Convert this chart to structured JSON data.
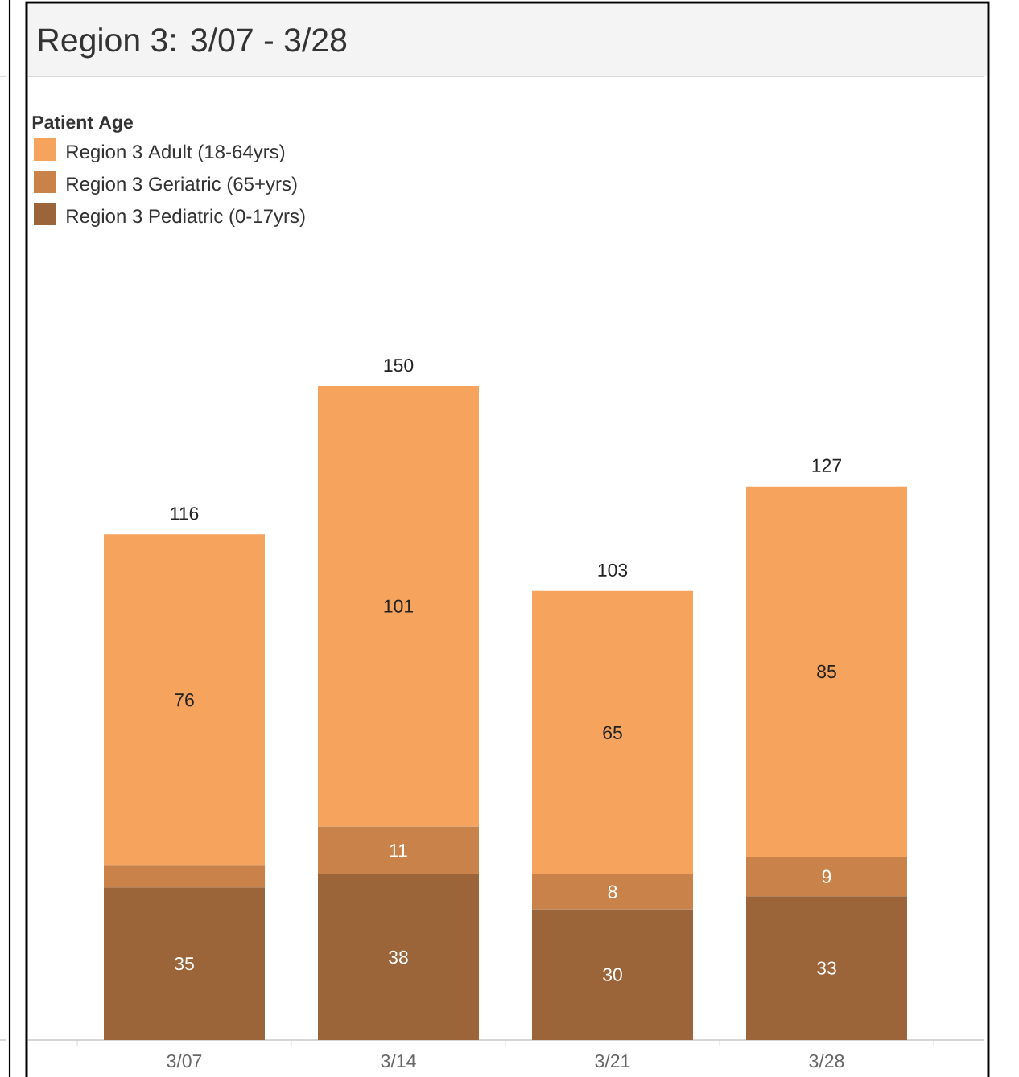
{
  "chart_data": {
    "type": "bar",
    "title": "Region 3: 3/07 - 3/28",
    "legend_title": "Patient Age",
    "categories": [
      "3/07",
      "3/14",
      "3/21",
      "3/28"
    ],
    "stacked": true,
    "series": [
      {
        "name": "Region 3 Pediatric (0-17yrs)",
        "color": "#9b6539",
        "values": [
          35,
          38,
          30,
          33
        ],
        "value_labels": [
          "35",
          "38",
          "30",
          "33"
        ]
      },
      {
        "name": "Region 3 Geriatric (65+yrs)",
        "color": "#c9834a",
        "values": [
          5,
          11,
          8,
          9
        ],
        "value_labels": [
          null,
          "11",
          "8",
          "9"
        ]
      },
      {
        "name": "Region 3 Adult (18-64yrs)",
        "color": "#f6a35d",
        "values": [
          76,
          101,
          65,
          85
        ],
        "value_labels": [
          "76",
          "101",
          "65",
          "85"
        ]
      }
    ],
    "totals": [
      "116",
      "150",
      "103",
      "127"
    ],
    "tick_labels": "x",
    "legend": "top left"
  }
}
